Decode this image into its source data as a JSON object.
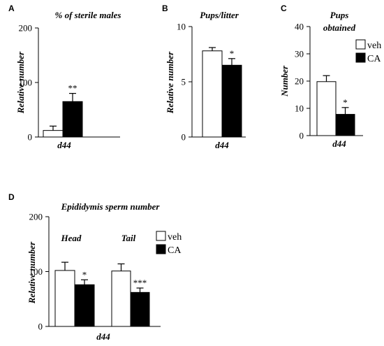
{
  "chart_data": [
    {
      "panel": "A",
      "type": "bar",
      "title": "% of sterile males",
      "ylabel": "Relative  number",
      "xlabel": "d44",
      "ylim": [
        0,
        200
      ],
      "yticks": [
        0,
        100,
        200
      ],
      "categories": [
        "d44"
      ],
      "series": [
        {
          "name": "veh",
          "values": [
            12
          ],
          "errors": [
            8
          ],
          "fill": "#ffffff"
        },
        {
          "name": "CA",
          "values": [
            65
          ],
          "errors": [
            15
          ],
          "fill": "#000000"
        }
      ],
      "significance": [
        {
          "series": 1,
          "label": "**"
        }
      ]
    },
    {
      "panel": "B",
      "type": "bar",
      "title": "Pups/litter",
      "ylabel": "Relative  number",
      "xlabel": "d44",
      "ylim": [
        0,
        10
      ],
      "yticks": [
        0,
        5,
        10
      ],
      "categories": [
        "d44"
      ],
      "series": [
        {
          "name": "veh",
          "values": [
            7.8
          ],
          "errors": [
            0.3
          ],
          "fill": "#ffffff"
        },
        {
          "name": "CA",
          "values": [
            6.5
          ],
          "errors": [
            0.6
          ],
          "fill": "#000000"
        }
      ],
      "significance": [
        {
          "series": 1,
          "label": "*"
        }
      ]
    },
    {
      "panel": "C",
      "type": "bar",
      "title": [
        "Pups",
        "obtained"
      ],
      "ylabel": "Number",
      "xlabel": "d44",
      "ylim": [
        0,
        40
      ],
      "yticks": [
        0,
        10,
        20,
        30,
        40
      ],
      "categories": [
        "d44"
      ],
      "series": [
        {
          "name": "veh",
          "values": [
            19.8
          ],
          "errors": [
            2.2
          ],
          "fill": "#ffffff"
        },
        {
          "name": "CA",
          "values": [
            7.8
          ],
          "errors": [
            2.5
          ],
          "fill": "#000000"
        }
      ],
      "significance": [
        {
          "series": 1,
          "label": "*"
        }
      ],
      "legend": {
        "position": "top-right",
        "entries": [
          "veh",
          "CA"
        ]
      }
    },
    {
      "panel": "D",
      "type": "bar",
      "title": "Epididymis sperm number",
      "ylabel": "Relative  number",
      "xlabel": "d44",
      "ylim": [
        0,
        200
      ],
      "yticks": [
        0,
        100,
        200
      ],
      "categories": [
        "Head",
        "Tail"
      ],
      "series": [
        {
          "name": "veh",
          "values": [
            102,
            101
          ],
          "errors": [
            15,
            13
          ],
          "fill": "#ffffff"
        },
        {
          "name": "CA",
          "values": [
            76,
            62
          ],
          "errors": [
            9,
            8
          ],
          "fill": "#000000"
        }
      ],
      "significance": [
        {
          "series": 1,
          "category": 0,
          "label": "*"
        },
        {
          "series": 1,
          "category": 1,
          "label": "***"
        }
      ],
      "legend": {
        "position": "top-right",
        "entries": [
          "veh",
          "CA"
        ]
      }
    }
  ]
}
